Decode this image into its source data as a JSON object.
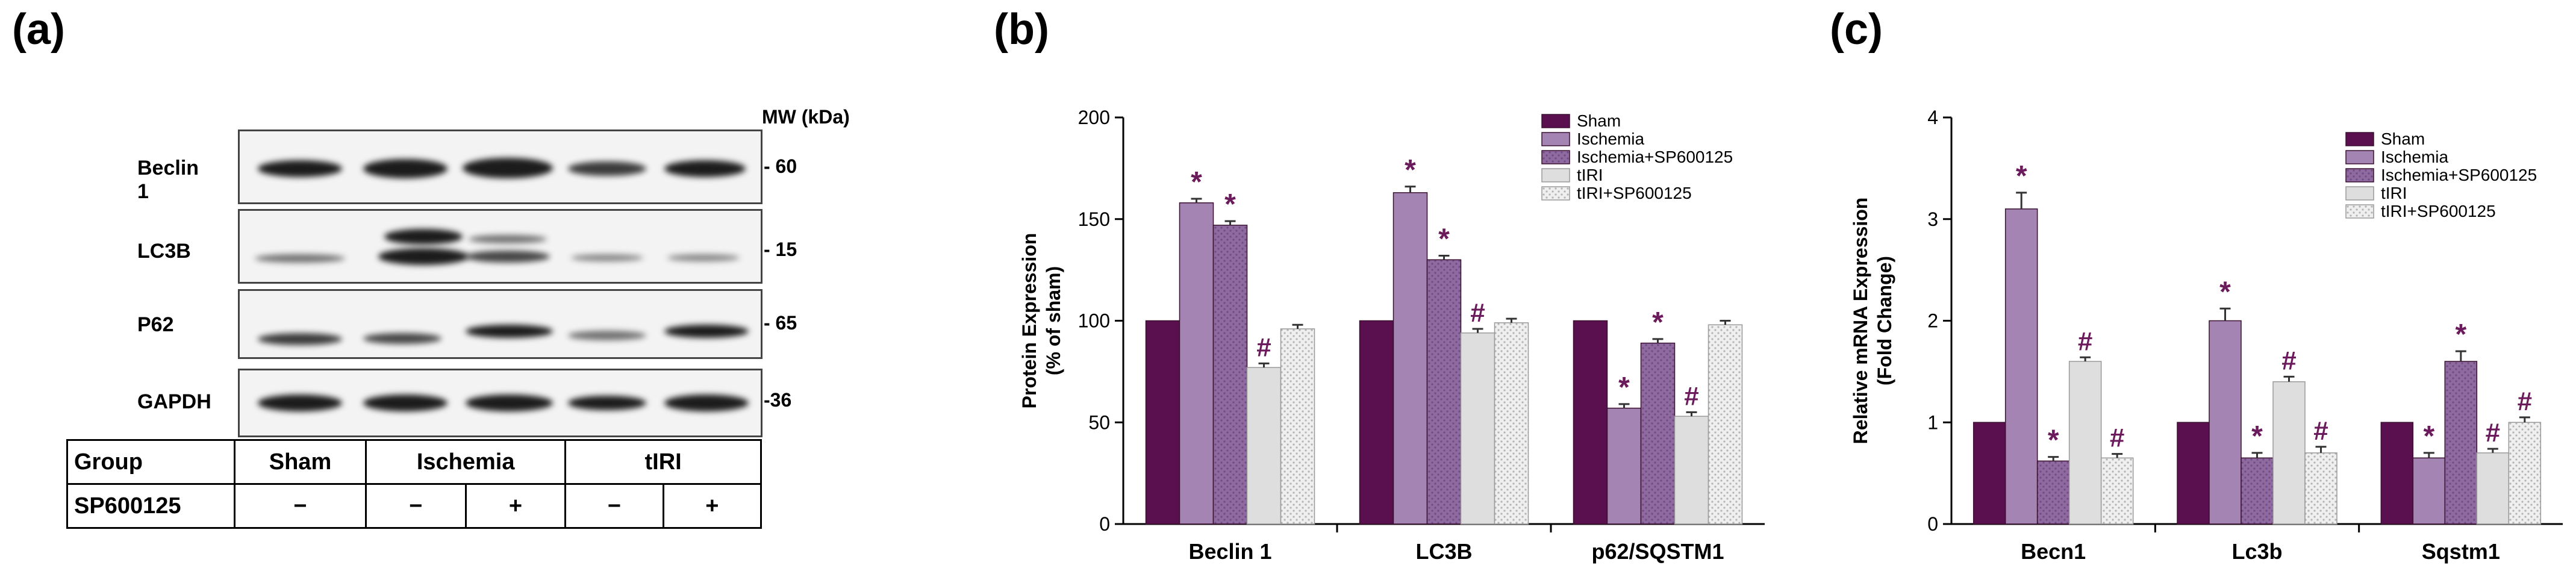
{
  "panels": {
    "a": "(a)",
    "b": "(b)",
    "c": "(c)"
  },
  "western_blot": {
    "mw_header": "MW (kDa)",
    "rows": [
      {
        "label": "Beclin 1",
        "mw": "- 60"
      },
      {
        "label": "LC3B",
        "mw": "- 15"
      },
      {
        "label": "P62",
        "mw": "- 65"
      },
      {
        "label": "GAPDH",
        "mw": "-36"
      }
    ],
    "table": {
      "group_label": "Group",
      "groups": [
        "Sham",
        "Ischemia",
        "tIRI"
      ],
      "treatment_label": "SP600125",
      "treatment_signs": [
        "−",
        "−",
        "+",
        "−",
        "+"
      ]
    }
  },
  "colors": {
    "Sham": "#5a0f4e",
    "Ischemia": "#a384b2",
    "Ischemia+SP600125": "#8f6aa0",
    "tIRI": "#dedede",
    "tIRI+SP600125": "#ececec",
    "annotation": "#6b1a5c"
  },
  "chart_data": [
    {
      "type": "bar",
      "ylabel": "Protein Expression\n(% of sham)",
      "ylim": [
        0,
        200
      ],
      "yticks": [
        0,
        50,
        100,
        150,
        200
      ],
      "categories": [
        "Beclin 1",
        "LC3B",
        "p62/SQSTM1"
      ],
      "legend_position": "top-right",
      "series": [
        {
          "name": "Sham",
          "values": [
            100,
            100,
            100
          ],
          "errors": [
            0,
            0,
            0
          ],
          "marks": [
            "",
            "",
            ""
          ]
        },
        {
          "name": "Ischemia",
          "values": [
            158,
            163,
            57
          ],
          "errors": [
            2,
            3,
            2
          ],
          "marks": [
            "*",
            "*",
            "*"
          ]
        },
        {
          "name": "Ischemia+SP600125",
          "values": [
            147,
            130,
            89
          ],
          "errors": [
            2,
            2,
            2
          ],
          "marks": [
            "*",
            "*",
            "*"
          ]
        },
        {
          "name": "tIRI",
          "values": [
            77,
            94,
            53
          ],
          "errors": [
            2,
            2,
            2
          ],
          "marks": [
            "#",
            "#",
            "#"
          ]
        },
        {
          "name": "tIRI+SP600125",
          "values": [
            96,
            99,
            98
          ],
          "errors": [
            2,
            2,
            2
          ],
          "marks": [
            "",
            "",
            ""
          ]
        }
      ]
    },
    {
      "type": "bar",
      "ylabel": "Relative mRNA Expression\n(Fold Change)",
      "ylim": [
        0,
        4
      ],
      "yticks": [
        0,
        1,
        2,
        3,
        4
      ],
      "categories": [
        "Becn1",
        "Lc3b",
        "Sqstm1"
      ],
      "legend_position": "top-right",
      "series": [
        {
          "name": "Sham",
          "values": [
            1.0,
            1.0,
            1.0
          ],
          "errors": [
            0,
            0,
            0
          ],
          "marks": [
            "",
            "",
            ""
          ]
        },
        {
          "name": "Ischemia",
          "values": [
            3.1,
            2.0,
            0.65
          ],
          "errors": [
            0.16,
            0.12,
            0.05
          ],
          "marks": [
            "*",
            "*",
            "*"
          ]
        },
        {
          "name": "Ischemia+SP600125",
          "values": [
            0.62,
            0.65,
            1.6
          ],
          "errors": [
            0.04,
            0.05,
            0.1
          ],
          "marks": [
            "*",
            "*",
            "*"
          ]
        },
        {
          "name": "tIRI",
          "values": [
            1.6,
            1.4,
            0.7
          ],
          "errors": [
            0.04,
            0.05,
            0.04
          ],
          "marks": [
            "#",
            "#",
            "#"
          ]
        },
        {
          "name": "tIRI+SP600125",
          "values": [
            0.65,
            0.7,
            1.0
          ],
          "errors": [
            0.04,
            0.06,
            0.05
          ],
          "marks": [
            "#",
            "#",
            "#"
          ]
        }
      ]
    }
  ]
}
